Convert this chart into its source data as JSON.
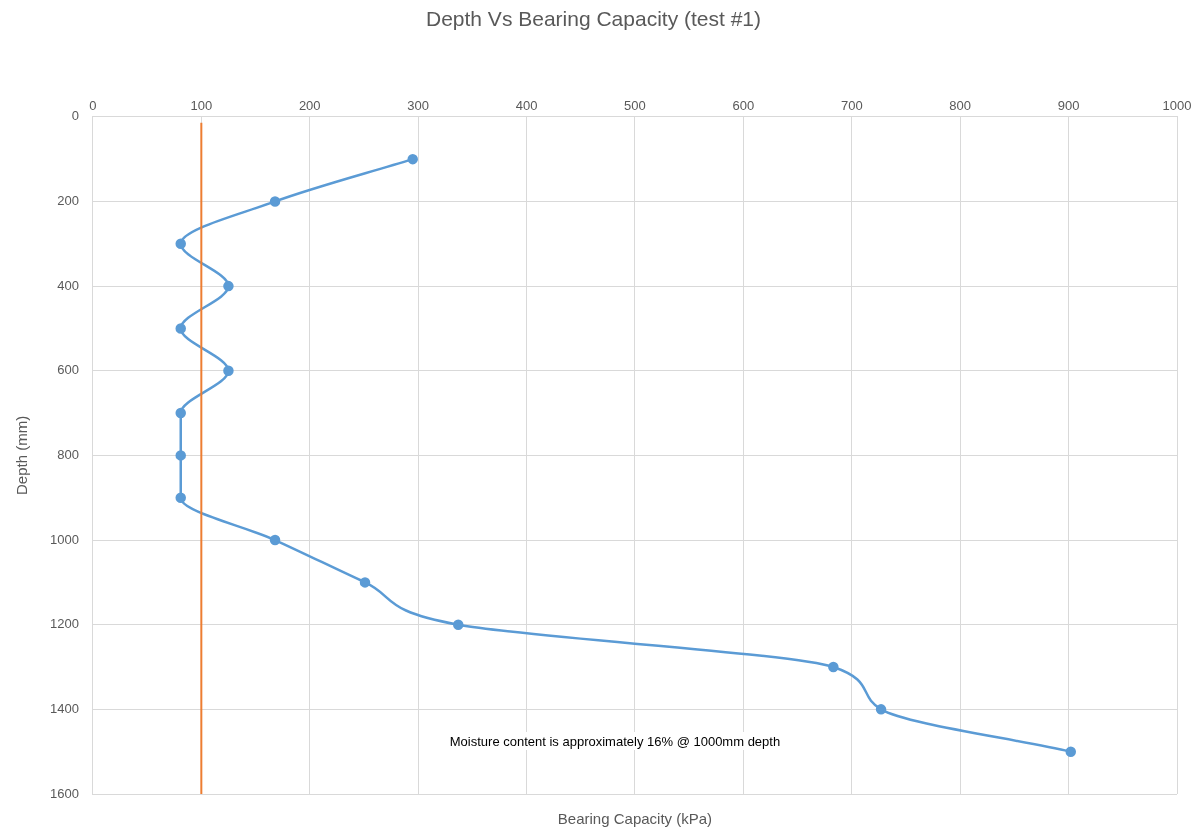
{
  "chart_data": {
    "type": "line",
    "title": "Depth Vs Bearing Capacity (test #1)",
    "xlabel": "Bearing Capacity (kPa)",
    "ylabel": "Depth (mm)",
    "series": [
      {
        "color": "#5b9bd5",
        "x": [
          295,
          168,
          81,
          125,
          81,
          125,
          81,
          81,
          81,
          168,
          251,
          337,
          683,
          727,
          902
        ],
        "values": [
          100,
          200,
          300,
          400,
          500,
          600,
          700,
          800,
          900,
          1000,
          1100,
          1200,
          1300,
          1400,
          1500
        ]
      }
    ],
    "xlim": [
      0,
      1000
    ],
    "xticks": [
      0,
      100,
      200,
      300,
      400,
      500,
      600,
      700,
      800,
      900,
      1000
    ],
    "ylim": [
      1600,
      0
    ],
    "yticks": [
      0,
      200,
      400,
      600,
      800,
      1000,
      1200,
      1400,
      1600
    ],
    "ref_lines": [
      {
        "axis": "x",
        "value": 100,
        "color": "#ed7d31"
      }
    ],
    "annotations": [
      "Moisture content is approximately 16% @ 1000mm depth"
    ],
    "grid": true,
    "legend": false,
    "marker": "circle",
    "line_style": "solid"
  }
}
